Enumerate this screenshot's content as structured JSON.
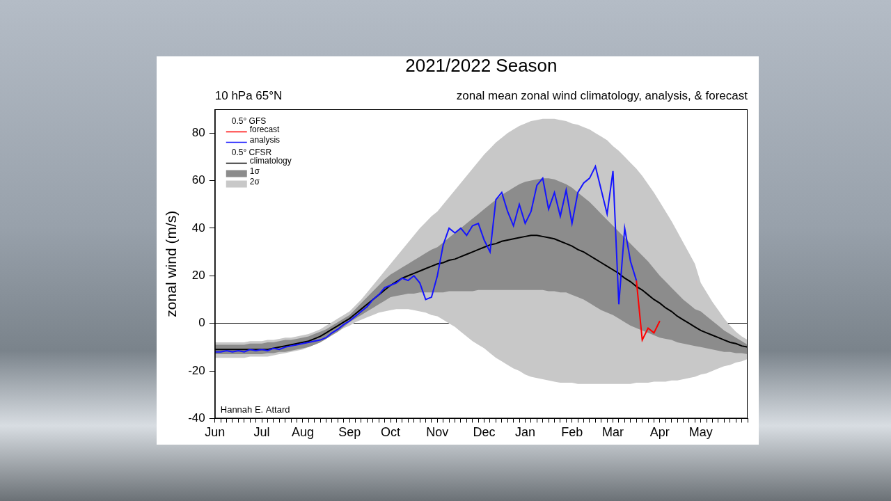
{
  "chart_data": {
    "type": "line",
    "title": "2021/2022 Season",
    "subtitle_left": "10 hPa 65°N",
    "subtitle_right": "zonal mean zonal wind climatology, analysis, & forecast",
    "y_label": "zonal wind (m/s)",
    "annotations": [
      "Hannah E. Attard"
    ],
    "categories": [
      "Jun",
      null,
      null,
      null,
      null,
      null,
      null,
      null,
      "Jul",
      null,
      null,
      null,
      null,
      null,
      null,
      "Aug",
      null,
      null,
      null,
      null,
      null,
      null,
      null,
      "Sep",
      null,
      null,
      null,
      null,
      null,
      null,
      "Oct",
      null,
      null,
      null,
      null,
      null,
      null,
      null,
      "Nov",
      null,
      null,
      null,
      null,
      null,
      null,
      null,
      "Dec",
      null,
      null,
      null,
      null,
      null,
      null,
      "Jan",
      null,
      null,
      null,
      null,
      null,
      null,
      null,
      "Feb",
      null,
      null,
      null,
      null,
      null,
      null,
      "Mar",
      null,
      null,
      null,
      null,
      null,
      null,
      null,
      "Apr",
      null,
      null,
      null,
      null,
      null,
      null,
      "May",
      null,
      null,
      null,
      null,
      null,
      null,
      null,
      null
    ],
    "ylim": [
      -40,
      90
    ],
    "yticks": [
      -40,
      -20,
      0,
      20,
      40,
      60,
      80
    ],
    "grid": false,
    "legend": "upper left",
    "series": [
      {
        "name": "forecast",
        "source": "0.5° GFS",
        "type": "line",
        "color": "#ff0000",
        "marker": "none",
        "line_style": "solid",
        "values": [
          null,
          null,
          null,
          null,
          null,
          null,
          null,
          null,
          null,
          null,
          null,
          null,
          null,
          null,
          null,
          null,
          null,
          null,
          null,
          null,
          null,
          null,
          null,
          null,
          null,
          null,
          null,
          null,
          null,
          null,
          null,
          null,
          null,
          null,
          null,
          null,
          null,
          null,
          null,
          null,
          null,
          null,
          null,
          null,
          null,
          null,
          null,
          null,
          null,
          null,
          null,
          null,
          null,
          null,
          null,
          null,
          null,
          null,
          null,
          null,
          null,
          null,
          null,
          null,
          null,
          null,
          null,
          null,
          null,
          null,
          null,
          null,
          18,
          -7,
          -2,
          -4,
          1,
          null,
          null,
          null,
          null,
          null,
          null,
          null,
          null,
          null,
          null,
          null,
          null,
          null,
          null,
          null
        ]
      },
      {
        "name": "analysis",
        "source": "0.5° GFS",
        "type": "line",
        "color": "#1414ff",
        "marker": "none",
        "line_style": "solid",
        "values": [
          -12,
          -12,
          -11.5,
          -12,
          -11.5,
          -12,
          -11,
          -11.5,
          -11,
          -11.5,
          -10.5,
          -11,
          -10,
          -9.5,
          -9,
          -8.5,
          -8,
          -7.5,
          -7,
          -6,
          -4,
          -2.5,
          -0.5,
          1,
          3,
          5,
          7,
          10,
          12,
          15,
          16,
          17,
          19,
          18,
          20,
          17,
          10,
          11,
          20,
          33,
          40,
          38,
          40,
          37,
          41,
          42,
          35,
          30,
          52,
          55,
          47,
          41,
          50,
          42,
          47,
          58,
          61,
          48,
          55,
          45,
          56,
          42,
          55,
          59,
          61,
          66,
          56,
          46,
          64,
          8,
          40,
          26,
          18,
          null,
          null,
          null,
          null,
          null,
          null,
          null,
          null,
          null,
          null,
          null,
          null,
          null,
          null,
          null,
          null,
          null,
          null,
          null
        ]
      },
      {
        "name": "climatology",
        "source": "0.5° CFSR",
        "type": "line",
        "color": "#000000",
        "marker": "none",
        "line_style": "solid",
        "values": [
          -11,
          -11,
          -11,
          -11,
          -11,
          -11,
          -11,
          -11,
          -11,
          -11,
          -10.5,
          -10,
          -9.5,
          -9,
          -8.5,
          -8,
          -7.5,
          -6.5,
          -5.5,
          -4,
          -2.5,
          -1,
          0.5,
          2,
          4,
          6,
          8,
          10,
          12,
          14,
          16,
          17.5,
          19,
          20,
          21,
          22,
          23,
          24,
          25,
          25.5,
          26.5,
          27,
          28,
          29,
          30,
          31,
          32,
          33,
          33.5,
          34.5,
          35,
          35.5,
          36,
          36.5,
          37,
          37,
          36.5,
          36,
          35.5,
          34.5,
          33.5,
          32.5,
          31,
          30,
          28.5,
          27,
          25.5,
          24,
          22.5,
          21,
          19,
          17.5,
          15.5,
          14,
          12,
          10,
          8.5,
          6.5,
          5,
          3,
          1.5,
          0,
          -1.5,
          -3,
          -4,
          -5,
          -6,
          -7,
          -8,
          -8.5,
          -9.5,
          -10
        ]
      },
      {
        "name": "1σ",
        "source": "0.5° CFSR",
        "type": "band",
        "color": "#8c8c8c",
        "upper": [
          -9,
          -9,
          -9,
          -9,
          -9,
          -9,
          -8.5,
          -8.5,
          -8.5,
          -8,
          -8,
          -7.5,
          -7,
          -7,
          -6.5,
          -6,
          -5.5,
          -4.5,
          -3.5,
          -2.5,
          -1,
          0.5,
          2,
          3.5,
          6,
          8.5,
          11,
          13.5,
          16,
          18.5,
          20.5,
          22,
          23.5,
          25,
          26.5,
          28,
          29.5,
          31,
          32,
          34,
          36,
          38,
          40,
          42,
          44,
          46,
          48,
          50,
          52,
          54,
          55.5,
          57,
          58.5,
          59.5,
          60,
          60.5,
          61,
          61,
          60.5,
          59.5,
          58.5,
          57,
          55,
          53,
          51,
          48.5,
          46,
          43.5,
          41,
          38.5,
          36,
          33.5,
          31,
          28.5,
          26,
          23,
          20,
          17.5,
          15,
          12.5,
          10,
          8,
          6,
          5,
          3,
          1,
          -1,
          -3,
          -4.5,
          -6,
          -7.5,
          -9
        ],
        "lower": [
          -13,
          -13,
          -13,
          -13,
          -13,
          -13,
          -13,
          -13,
          -13,
          -12.5,
          -12.5,
          -12,
          -12,
          -11.5,
          -11,
          -10.5,
          -10,
          -9,
          -8,
          -6.5,
          -5,
          -3.5,
          -1.5,
          0.5,
          2,
          3.5,
          5,
          6.5,
          8,
          9.5,
          11,
          11.5,
          12,
          12.5,
          12.5,
          13,
          13,
          13,
          13,
          13,
          13.5,
          13.5,
          13.5,
          13.5,
          13.5,
          14,
          14,
          14,
          14,
          14,
          14,
          14,
          14,
          14,
          14,
          14,
          14,
          13.5,
          13.5,
          13,
          13,
          12,
          11,
          10,
          8.5,
          7,
          5.5,
          4.5,
          3.5,
          2,
          0.5,
          -1,
          -2,
          -3,
          -4,
          -5,
          -6,
          -6.5,
          -7,
          -8,
          -8.5,
          -9,
          -9.5,
          -10,
          -10.5,
          -11,
          -11.5,
          -12,
          -12,
          -12.5,
          -12.5,
          -13
        ]
      },
      {
        "name": "2σ",
        "source": "0.5° CFSR",
        "type": "band",
        "color": "#c8c8c8",
        "upper": [
          -8,
          -8,
          -8,
          -8,
          -8,
          -8,
          -7.5,
          -7.5,
          -7.5,
          -7,
          -7,
          -6.5,
          -6,
          -6,
          -5.5,
          -5,
          -4.5,
          -3.5,
          -2.5,
          -1,
          0.5,
          2,
          3.5,
          5,
          7.5,
          10,
          13,
          16,
          19,
          22,
          25,
          28,
          31,
          34,
          37,
          40,
          42.5,
          45,
          47,
          50,
          53,
          56,
          59,
          62,
          65,
          68,
          71,
          73.5,
          76,
          78,
          80,
          81.5,
          83,
          84,
          85,
          85.5,
          86,
          86,
          86,
          85.5,
          85,
          84,
          83.5,
          82.5,
          81.5,
          80,
          78.5,
          77,
          74.5,
          72.5,
          70,
          67.5,
          65,
          62,
          58.5,
          55,
          51,
          47,
          43,
          38.5,
          34,
          29.5,
          25,
          17,
          13,
          9,
          5.5,
          2,
          -1,
          -3.5,
          -5.5,
          -7
        ],
        "lower": [
          -14.5,
          -14.5,
          -14.5,
          -14.5,
          -14.5,
          -14.5,
          -14,
          -14,
          -14,
          -14,
          -13.5,
          -13,
          -12.5,
          -12,
          -11.5,
          -11,
          -10,
          -9,
          -8,
          -6.5,
          -5,
          -3.5,
          -2,
          -1,
          0.5,
          1.5,
          2.5,
          3.5,
          4.5,
          5,
          5.5,
          6,
          6,
          6,
          5.5,
          5,
          4.5,
          3.5,
          3,
          1.5,
          0,
          -1.5,
          -3.5,
          -5.5,
          -7.5,
          -9,
          -10.5,
          -12.5,
          -14.5,
          -16,
          -17.5,
          -19,
          -20,
          -21.5,
          -22.5,
          -23,
          -23.5,
          -24,
          -24.5,
          -25,
          -25,
          -25,
          -25.5,
          -25.5,
          -25.5,
          -25.5,
          -25.5,
          -25.5,
          -25.5,
          -25.5,
          -25.5,
          -25.5,
          -25,
          -25,
          -25,
          -24.5,
          -24.5,
          -24.5,
          -24,
          -24,
          -23.5,
          -23,
          -22.5,
          -21.5,
          -21,
          -20,
          -19,
          -18,
          -17.5,
          -16.5,
          -16,
          -15
        ]
      }
    ]
  }
}
